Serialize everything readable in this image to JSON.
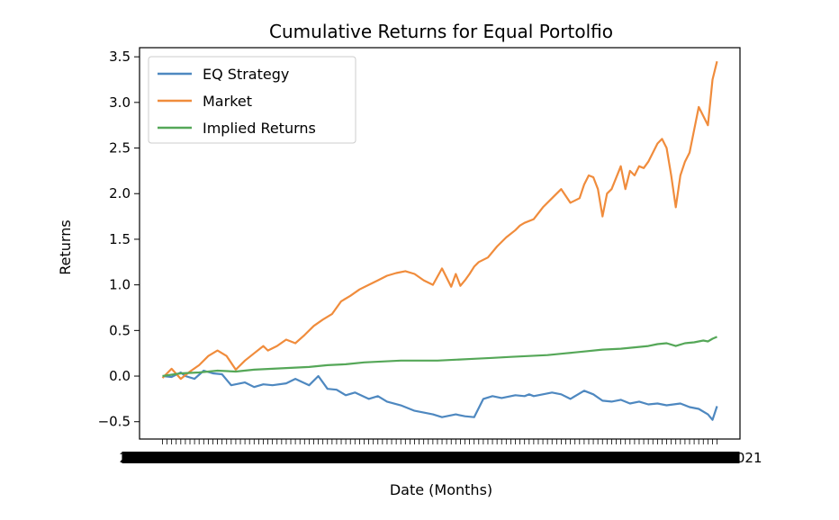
{
  "chart_data": {
    "type": "line",
    "title": "Cumulative Returns for Equal Portolfio",
    "xlabel": "Date (Months)",
    "ylabel": "Returns",
    "ylim": [
      -0.69,
      3.6
    ],
    "yticks": [
      -0.5,
      0.0,
      0.5,
      1.0,
      1.5,
      2.0,
      2.5,
      3.0,
      3.5
    ],
    "ytick_labels": [
      "−0.5",
      "0.0",
      "0.5",
      "1.0",
      "1.5",
      "2.0",
      "2.5",
      "3.0",
      "3.5"
    ],
    "x_tick_count": 122,
    "x_tick_label_note": "overlapping date tick labels, illegible",
    "x_tick_label_left": "2009",
    "x_tick_label_right": "2021",
    "grid": false,
    "legend_position": "upper-left",
    "series": [
      {
        "name": "EQ Strategy",
        "color": "#4e88c0",
        "x": [
          0,
          2,
          4,
          5,
          7,
          9,
          11,
          13,
          15,
          18,
          20,
          22,
          24,
          27,
          29,
          32,
          34,
          36,
          38,
          40,
          42,
          45,
          47,
          49,
          52,
          55,
          57,
          59,
          61,
          64,
          66,
          68,
          70,
          72,
          74,
          77,
          79,
          80,
          81,
          83,
          85,
          87,
          89,
          92,
          94,
          96,
          98,
          100,
          102,
          104,
          106,
          108,
          110,
          113,
          115,
          117,
          119,
          120,
          121
        ],
        "values": [
          0.0,
          -0.01,
          0.04,
          0.0,
          -0.03,
          0.06,
          0.03,
          0.02,
          -0.1,
          -0.07,
          -0.12,
          -0.09,
          -0.1,
          -0.08,
          -0.03,
          -0.1,
          0.0,
          -0.14,
          -0.15,
          -0.21,
          -0.18,
          -0.25,
          -0.22,
          -0.28,
          -0.32,
          -0.38,
          -0.4,
          -0.42,
          -0.45,
          -0.42,
          -0.44,
          -0.45,
          -0.25,
          -0.22,
          -0.24,
          -0.21,
          -0.22,
          -0.2,
          -0.22,
          -0.2,
          -0.18,
          -0.2,
          -0.25,
          -0.16,
          -0.2,
          -0.27,
          -0.28,
          -0.26,
          -0.3,
          -0.28,
          -0.31,
          -0.3,
          -0.32,
          -0.3,
          -0.34,
          -0.36,
          -0.42,
          -0.48,
          -0.33
        ]
      },
      {
        "name": "Market",
        "color": "#f08c3c",
        "x": [
          0,
          2,
          4,
          6,
          8,
          10,
          12,
          14,
          16,
          18,
          20,
          22,
          23,
          25,
          27,
          29,
          31,
          33,
          35,
          37,
          39,
          41,
          43,
          45,
          47,
          49,
          51,
          53,
          55,
          57,
          59,
          61,
          63,
          64,
          65,
          66,
          67,
          68,
          69,
          71,
          73,
          75,
          77,
          78,
          79,
          81,
          83,
          85,
          87,
          89,
          91,
          92,
          93,
          94,
          95,
          96,
          97,
          98,
          100,
          101,
          102,
          103,
          104,
          105,
          106,
          107,
          108,
          109,
          110,
          111,
          112,
          113,
          114,
          115,
          116,
          117,
          118,
          119,
          120,
          121
        ],
        "values": [
          -0.02,
          0.08,
          -0.03,
          0.05,
          0.12,
          0.22,
          0.28,
          0.22,
          0.07,
          0.17,
          0.25,
          0.33,
          0.28,
          0.33,
          0.4,
          0.36,
          0.45,
          0.55,
          0.62,
          0.68,
          0.82,
          0.88,
          0.95,
          1.0,
          1.05,
          1.1,
          1.13,
          1.15,
          1.12,
          1.05,
          1.0,
          1.18,
          0.98,
          1.12,
          0.99,
          1.05,
          1.12,
          1.2,
          1.25,
          1.3,
          1.42,
          1.52,
          1.6,
          1.65,
          1.68,
          1.72,
          1.85,
          1.95,
          2.05,
          1.9,
          1.95,
          2.1,
          2.2,
          2.18,
          2.05,
          1.75,
          2.0,
          2.05,
          2.3,
          2.05,
          2.25,
          2.2,
          2.3,
          2.28,
          2.35,
          2.45,
          2.55,
          2.6,
          2.5,
          2.2,
          1.85,
          2.2,
          2.35,
          2.45,
          2.7,
          2.95,
          2.85,
          2.75,
          3.25,
          3.45
        ]
      },
      {
        "name": "Implied Returns",
        "color": "#55a758",
        "x": [
          0,
          4,
          8,
          12,
          16,
          20,
          24,
          28,
          32,
          36,
          40,
          44,
          48,
          52,
          56,
          60,
          64,
          68,
          72,
          76,
          80,
          84,
          88,
          92,
          96,
          100,
          104,
          106,
          108,
          110,
          112,
          114,
          116,
          118,
          119,
          120,
          121
        ],
        "values": [
          0.0,
          0.03,
          0.04,
          0.06,
          0.05,
          0.07,
          0.08,
          0.09,
          0.1,
          0.12,
          0.13,
          0.15,
          0.16,
          0.17,
          0.17,
          0.17,
          0.18,
          0.19,
          0.2,
          0.21,
          0.22,
          0.23,
          0.25,
          0.27,
          0.29,
          0.3,
          0.32,
          0.33,
          0.35,
          0.36,
          0.33,
          0.36,
          0.37,
          0.39,
          0.38,
          0.41,
          0.43
        ]
      }
    ]
  }
}
